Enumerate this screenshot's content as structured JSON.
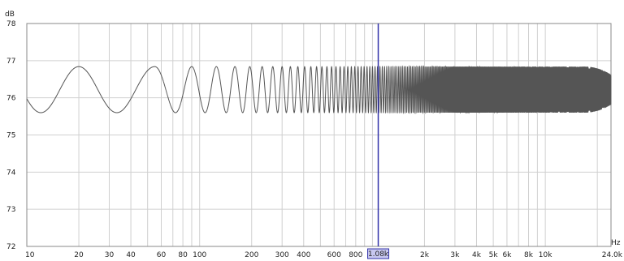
{
  "chart_data": {
    "type": "line",
    "title": "",
    "x_scale": "log",
    "xlim": [
      10,
      24000
    ],
    "ylim": [
      72,
      78
    ],
    "x_unit": "Hz",
    "y_unit": "dB",
    "grid": true,
    "x_ticks": [
      {
        "value": 10,
        "label": "10"
      },
      {
        "value": 20,
        "label": "20"
      },
      {
        "value": 30,
        "label": "30"
      },
      {
        "value": 40,
        "label": "40"
      },
      {
        "value": 60,
        "label": "60"
      },
      {
        "value": 80,
        "label": "80"
      },
      {
        "value": 100,
        "label": "100"
      },
      {
        "value": 200,
        "label": "200"
      },
      {
        "value": 300,
        "label": "300"
      },
      {
        "value": 400,
        "label": "400"
      },
      {
        "value": 600,
        "label": "600"
      },
      {
        "value": 800,
        "label": "800"
      },
      {
        "value": 2000,
        "label": "2k"
      },
      {
        "value": 3000,
        "label": "3k"
      },
      {
        "value": 4000,
        "label": "4k"
      },
      {
        "value": 5000,
        "label": "5k"
      },
      {
        "value": 6000,
        "label": "6k"
      },
      {
        "value": 8000,
        "label": "8k"
      },
      {
        "value": 10000,
        "label": "10k"
      },
      {
        "value": 24000,
        "label": "24.0k"
      }
    ],
    "y_ticks": [
      {
        "value": 72,
        "label": "72"
      },
      {
        "value": 73,
        "label": "73"
      },
      {
        "value": 74,
        "label": "74"
      },
      {
        "value": 75,
        "label": "75"
      },
      {
        "value": 76,
        "label": "76"
      },
      {
        "value": 77,
        "label": "77"
      },
      {
        "value": 78,
        "label": "78"
      }
    ],
    "cursor": {
      "value": 1080,
      "label": "1.08k"
    },
    "series": [
      {
        "sweep_start_hz": 10,
        "sweep_end_hz": 24000,
        "center_db": 76.22,
        "amplitude_db": 0.62,
        "peak_frequencies_hz": [
          20,
          55,
          90,
          125,
          160,
          195
        ]
      }
    ],
    "colors": {
      "line": "#555555",
      "cursor": "#3333aa",
      "grid": "#d0d0d0",
      "cursor_label_bg": "#c8c8f0"
    }
  }
}
